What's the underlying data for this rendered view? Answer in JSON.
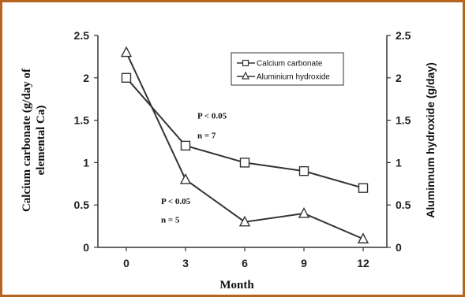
{
  "chart_data": {
    "type": "line",
    "x": [
      0,
      3,
      6,
      9,
      12
    ],
    "xlabel": "Month",
    "ylabel_left": "Calcium carbonate (g/day of elemental Ca)",
    "ylabel_left_lines": [
      "Calcium carbonate (g/day of",
      "elemental Ca)"
    ],
    "ylabel_right": "Aluminnum hydroxide (g/day)",
    "ylim": [
      0,
      2.5
    ],
    "xticks": [
      "0",
      "3",
      "6",
      "9",
      "12"
    ],
    "yticks": [
      "0",
      "0.5",
      "1",
      "1.5",
      "2",
      "2.5"
    ],
    "series": [
      {
        "name": "Calcium carbonate",
        "marker": "square",
        "axis": "left",
        "values": [
          2.0,
          1.2,
          1.0,
          0.9,
          0.7
        ]
      },
      {
        "name": "Aluminium hydroxide",
        "marker": "triangle",
        "axis": "right",
        "values": [
          2.3,
          0.8,
          0.3,
          0.4,
          0.1
        ]
      }
    ],
    "annotations": [
      {
        "text": "P < 0.05",
        "series": "Calcium carbonate"
      },
      {
        "text": "n = 7",
        "series": "Calcium carbonate"
      },
      {
        "text": "P < 0.05",
        "series": "Aluminium hydroxide"
      },
      {
        "text": "n = 5",
        "series": "Aluminium hydroxide"
      }
    ],
    "legend_position": "top-right",
    "grid": false
  },
  "colors": {
    "frame": "#b5651d",
    "line": "#333333",
    "text": "#111111"
  }
}
